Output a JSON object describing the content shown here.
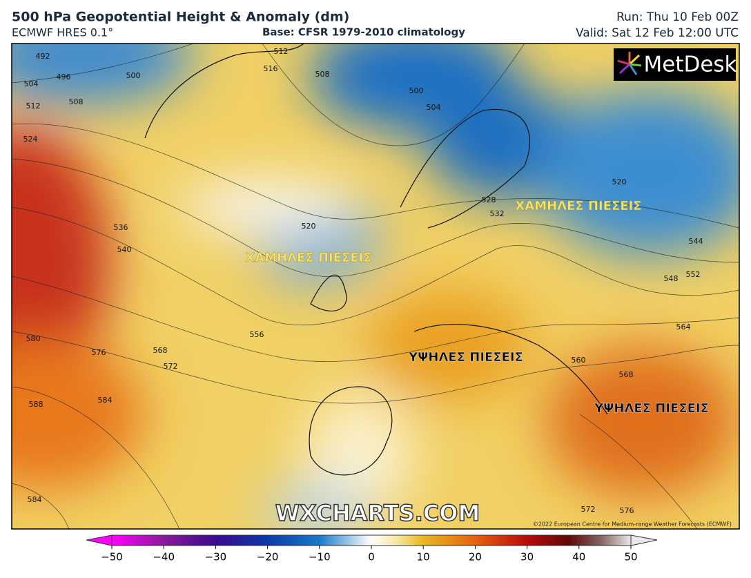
{
  "header": {
    "title": "500 hPa Geopotential Height & Anomaly (dm)",
    "model": "ECMWF HRES 0.1°",
    "base": "Base: CFSR 1979-2010 climatology",
    "run": "Run: Thu 10 Feb 00Z",
    "valid": "Valid: Sat 12 Feb 12:00 UTC"
  },
  "logo": "MetDesk",
  "annotations": [
    "ΧΑΜΗΛΕΣ ΠΙΕΣΕΙΣ",
    "ΧΑΜΗΛΕΣ ΠΙΕΣΕΙΣ",
    "ΥΨΗΛΕΣ ΠΙΕΣΕΙΣ",
    "ΥΨΗΛΕΣ ΠΙΕΣΕΙΣ"
  ],
  "contour_labels": [
    492,
    496,
    500,
    504,
    508,
    512,
    512,
    516,
    508,
    500,
    504,
    520,
    524,
    528,
    532,
    536,
    540,
    520,
    544,
    548,
    552,
    556,
    560,
    564,
    568,
    568,
    572,
    576,
    580,
    584,
    588,
    584,
    572,
    576
  ],
  "watermark": "WXCHARTS.COM",
  "copyright": "©2022 European Centre for Medium-range Weather Forecasts (ECMWF)",
  "colorbar": {
    "lim": [
      -50,
      50
    ],
    "ticks": [
      {
        "value": -50,
        "label": "−50"
      },
      {
        "value": -40,
        "label": "−40"
      },
      {
        "value": -30,
        "label": "−30"
      },
      {
        "value": -20,
        "label": "−20"
      },
      {
        "value": -10,
        "label": "−10"
      },
      0,
      10,
      20,
      30,
      40,
      50
    ]
  }
}
